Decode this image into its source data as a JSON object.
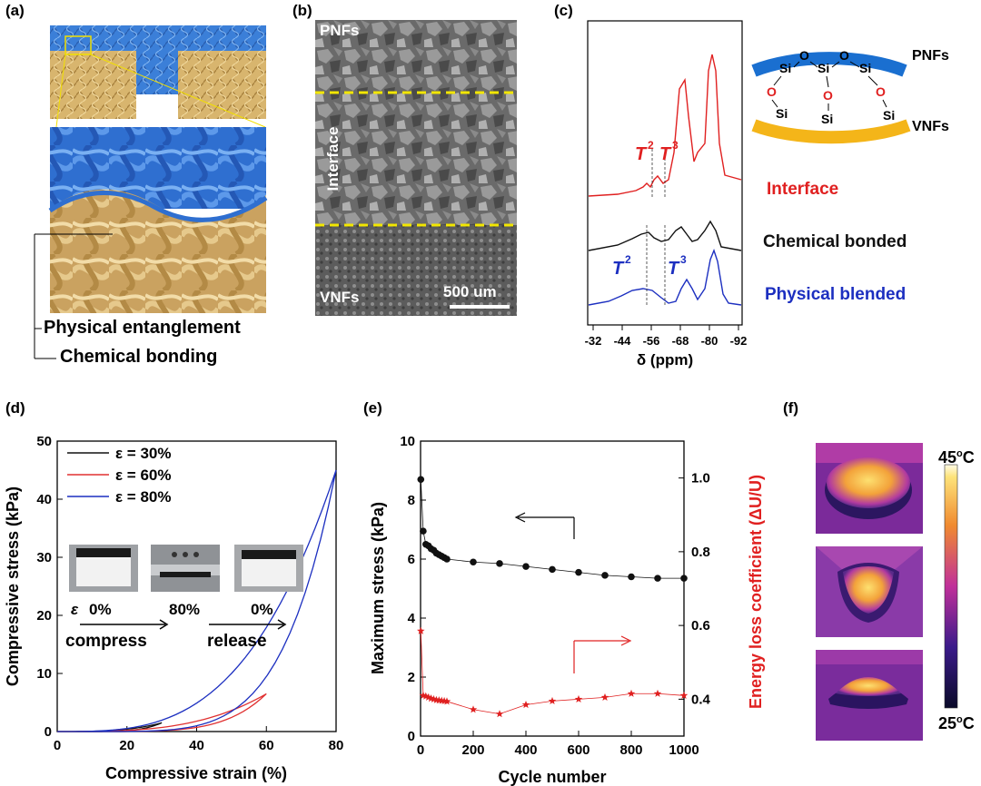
{
  "panel_labels": [
    "(a)",
    "(b)",
    "(c)",
    "(d)",
    "(e)",
    "(f)"
  ],
  "panel_a": {
    "label_physical": "Physical entanglement",
    "label_chemical": "Chemical bonding",
    "colors": {
      "blue": "#3b7fd8",
      "tan": "#d8b56e"
    }
  },
  "panel_b": {
    "label_top": "PNFs",
    "label_middle": "Interface",
    "label_bottom": "VNFs",
    "scale_bar": "500 um"
  },
  "panel_c": {
    "xlabel": "δ (ppm)",
    "x_ticks": [
      "-32",
      "-44",
      "-56",
      "-68",
      "-80",
      "-92"
    ],
    "t2_label": "T",
    "t3_label": "T",
    "sup2": "2",
    "sup3": "3",
    "legend": [
      "Interface",
      "Chemical bonded",
      "Physical blended"
    ],
    "legend_colors": [
      "#e02020",
      "#111111",
      "#1c2fc0"
    ],
    "schematic": {
      "top": "PNFs",
      "bottom": "VNFs",
      "si": "Si",
      "o": "O"
    }
  },
  "chart_data": [
    {
      "type": "line",
      "panel": "(d)",
      "xlabel": "Compressive strain (%)",
      "ylabel": "Compressive stress (kPa)",
      "xlim": [
        0,
        80
      ],
      "ylim": [
        0,
        50
      ],
      "x_ticks": [
        0,
        20,
        40,
        60,
        80
      ],
      "y_ticks": [
        0,
        10,
        20,
        30,
        40,
        50
      ],
      "series": [
        {
          "name": "ε = 30%",
          "color": "#111111",
          "max_strain": 30,
          "max_stress": 1.5
        },
        {
          "name": "ε = 60%",
          "color": "#e03030",
          "max_strain": 60,
          "max_stress": 6.5
        },
        {
          "name": "ε = 80%",
          "color": "#1c2fc0",
          "max_strain": 80,
          "max_stress": 45
        }
      ],
      "inset": {
        "eps_label": "ε",
        "strains": [
          "0%",
          "80%",
          "0%"
        ],
        "compress": "compress",
        "release": "release"
      }
    },
    {
      "type": "scatter",
      "panel": "(e)",
      "xlabel": "Cycle number",
      "ylabel_left": "Maximum stress (kPa)",
      "ylabel_right": "Energy loss coefficient (ΔU/U)",
      "xlim": [
        0,
        1000
      ],
      "ylim_left": [
        0,
        10
      ],
      "ylim_right": [
        0.3,
        1.1
      ],
      "x_ticks": [
        0,
        200,
        400,
        600,
        800,
        1000
      ],
      "y_ticks_left": [
        0,
        2,
        4,
        6,
        8,
        10
      ],
      "y_ticks_right": [
        "0.4",
        "0.6",
        "0.8",
        "1.0"
      ],
      "series": [
        {
          "name": "Maximum stress",
          "color": "#111111",
          "axis": "left",
          "x": [
            1,
            10,
            20,
            30,
            40,
            50,
            60,
            70,
            80,
            90,
            100,
            200,
            300,
            400,
            500,
            600,
            700,
            800,
            900,
            1000
          ],
          "y": [
            8.7,
            6.95,
            6.5,
            6.45,
            6.35,
            6.3,
            6.2,
            6.15,
            6.1,
            6.05,
            6.0,
            5.9,
            5.85,
            5.75,
            5.65,
            5.55,
            5.45,
            5.4,
            5.35,
            5.35
          ]
        },
        {
          "name": "Energy loss coefficient",
          "color": "#e02020",
          "axis": "right",
          "x": [
            1,
            10,
            20,
            30,
            40,
            50,
            60,
            70,
            80,
            90,
            100,
            200,
            300,
            400,
            500,
            600,
            700,
            800,
            900,
            1000
          ],
          "y": [
            0.585,
            0.41,
            0.408,
            0.405,
            0.402,
            0.4,
            0.398,
            0.397,
            0.396,
            0.395,
            0.394,
            0.372,
            0.36,
            0.385,
            0.395,
            0.4,
            0.405,
            0.415,
            0.415,
            0.41
          ]
        }
      ]
    }
  ],
  "panel_f": {
    "scale_max": "45",
    "scale_min": "25",
    "unit_sup": "o",
    "unit": "C"
  }
}
